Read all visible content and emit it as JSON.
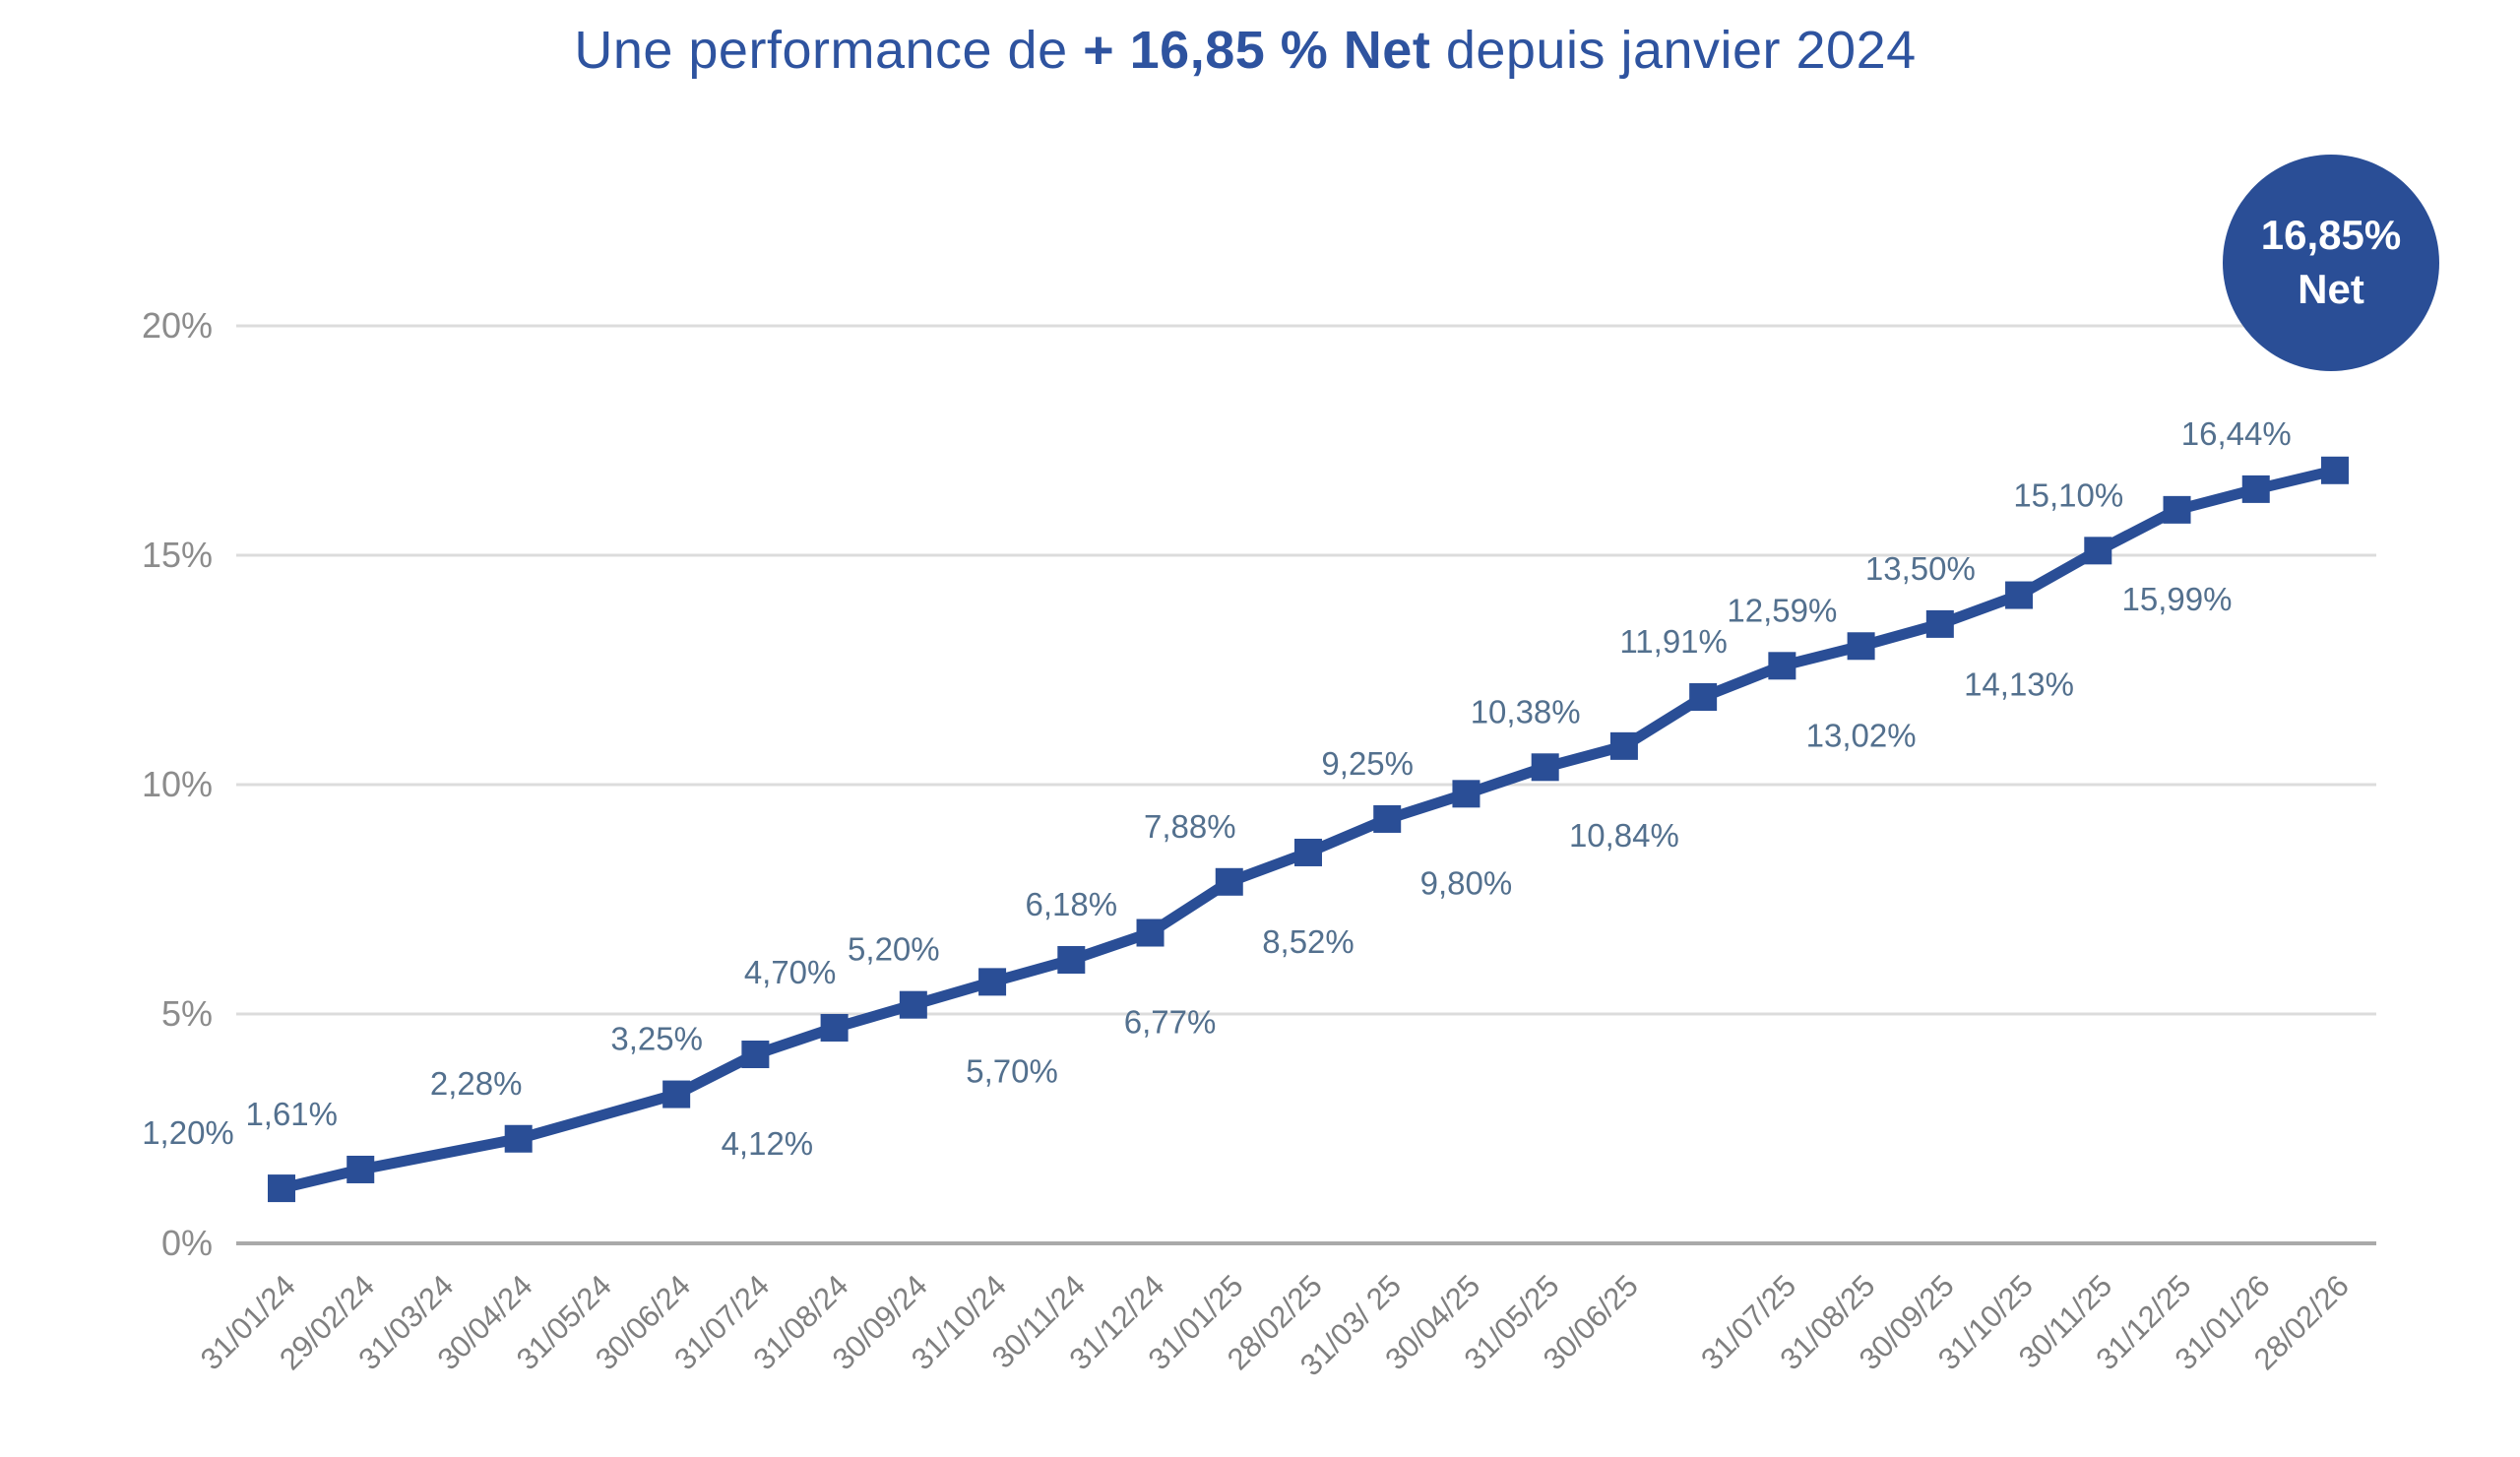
{
  "title": {
    "prefix": "Une performance de ",
    "highlight": "+ 16,85 % Net",
    "suffix": " depuis janvier 2024"
  },
  "badge": {
    "value": "16,85%",
    "unit": "Net"
  },
  "colors": {
    "accent": "#2A4E96",
    "title_text": "#2E539F",
    "data_label": "#53708E",
    "y_axis_label": "#8C8C8C",
    "x_axis_label": "#7F7F7F",
    "gridline": "#DCDCDC",
    "axis_line": "#A9A9A9",
    "badge_text": "#FFFFFF",
    "background": "#FFFFFF"
  },
  "chart_data": {
    "type": "line",
    "title": "Une performance de + 16,85 % Net depuis janvier 2024",
    "xlabel": "",
    "ylabel": "",
    "ylim": [
      0,
      20
    ],
    "grid": true,
    "legend": false,
    "marker": "square",
    "y_ticks": [
      {
        "value": 0,
        "label": "0%"
      },
      {
        "value": 5,
        "label": "5%"
      },
      {
        "value": 10,
        "label": "10%"
      },
      {
        "value": 15,
        "label": "15%"
      },
      {
        "value": 20,
        "label": "20%"
      }
    ],
    "points": [
      {
        "date": "31/01/24",
        "value": 1.2,
        "label": "1,20%",
        "label_side": "above",
        "label_dx": -95
      },
      {
        "date": "29/02/24",
        "value": 1.61,
        "label": "1,61%",
        "label_side": "above",
        "label_dx": -70
      },
      {
        "date": "31/03/24",
        "value": null,
        "label": null,
        "label_side": null,
        "label_dx": 0
      },
      {
        "date": "30/04/24",
        "value": 2.28,
        "label": "2,28%",
        "label_side": "above",
        "label_dx": -43
      },
      {
        "date": "31/05/24",
        "value": null,
        "label": null,
        "label_side": null,
        "label_dx": 0
      },
      {
        "date": "30/06/24",
        "value": 3.25,
        "label": "3,25%",
        "label_side": "above",
        "label_dx": -20
      },
      {
        "date": "31/07/24",
        "value": 4.12,
        "label": "4,12%",
        "label_side": "below",
        "label_dx": 12
      },
      {
        "date": "31/08/24",
        "value": 4.7,
        "label": "4,70%",
        "label_side": "above",
        "label_dx": -45
      },
      {
        "date": "30/09/24",
        "value": 5.2,
        "label": "5,20%",
        "label_side": "above",
        "label_dx": -20
      },
      {
        "date": "31/10/24",
        "value": 5.7,
        "label": "5,70%",
        "label_side": "below",
        "label_dx": 20
      },
      {
        "date": "30/11/24",
        "value": 6.18,
        "label": "6,18%",
        "label_side": "above",
        "label_dx": 0
      },
      {
        "date": "31/12/24",
        "value": 6.77,
        "label": "6,77%",
        "label_side": "below",
        "label_dx": 20
      },
      {
        "date": "31/01/25",
        "value": 7.88,
        "label": "7,88%",
        "label_side": "above",
        "label_dx": -40
      },
      {
        "date": "28/02/25",
        "value": 8.52,
        "label": "8,52%",
        "label_side": "below",
        "label_dx": 0
      },
      {
        "date": "31/03/ 25",
        "value": 9.25,
        "label": "9,25%",
        "label_side": "above",
        "label_dx": -20
      },
      {
        "date": "30/04/25",
        "value": 9.8,
        "label": "9,80%",
        "label_side": "below",
        "label_dx": 0
      },
      {
        "date": "31/05/25",
        "value": 10.38,
        "label": "10,38%",
        "label_side": "above",
        "label_dx": -20
      },
      {
        "date": "30/06/25",
        "value": 10.84,
        "label": "10,84%",
        "label_side": "below",
        "label_dx": 0
      },
      {
        "date": "",
        "value": 11.91,
        "label": "11,91%",
        "label_side": "above",
        "label_dx": -30
      },
      {
        "date": "31/07/25",
        "value": 12.59,
        "label": "12,59%",
        "label_side": "above",
        "label_dx": 0
      },
      {
        "date": "31/08/25",
        "value": 13.02,
        "label": "13,02%",
        "label_side": "below",
        "label_dx": 0
      },
      {
        "date": "30/09/25",
        "value": 13.5,
        "label": "13,50%",
        "label_side": "above",
        "label_dx": -20
      },
      {
        "date": "31/10/25",
        "value": 14.13,
        "label": "14,13%",
        "label_side": "below",
        "label_dx": 0
      },
      {
        "date": "30/11/25",
        "value": 15.1,
        "label": "15,10%",
        "label_side": "above",
        "label_dx": -30
      },
      {
        "date": "31/12/25",
        "value": 15.99,
        "label": "15,99%",
        "label_side": "below",
        "label_dx": 0
      },
      {
        "date": "31/01/26",
        "value": 16.44,
        "label": "16,44%",
        "label_side": "above",
        "label_dx": -20
      },
      {
        "date": "28/02/26",
        "value": 16.85,
        "label": null,
        "label_side": null,
        "label_dx": 0
      }
    ]
  }
}
